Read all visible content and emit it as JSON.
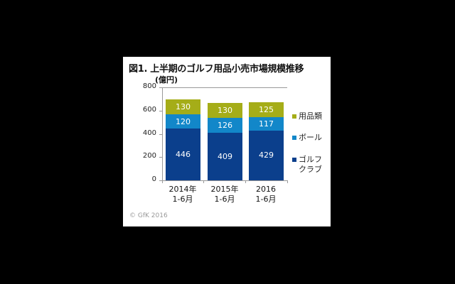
{
  "title": "図1. 上半期のゴルフ用品小売市場規模推移",
  "unit": "(億円)",
  "copyright": "© GfK 2016",
  "colors": {
    "golf_club": "#0B3F8C",
    "ball": "#1287C9",
    "goods": "#A5AD18"
  },
  "yaxis": {
    "ticks": [
      "0",
      "200",
      "400",
      "600",
      "800"
    ]
  },
  "categories": [
    {
      "line1": "2014年",
      "line2": "1-6月"
    },
    {
      "line1": "2015年",
      "line2": "1-6月"
    },
    {
      "line1": "2016",
      "line2": "1-6月"
    }
  ],
  "legend": [
    {
      "label": "用品類",
      "color": "#A5AD18"
    },
    {
      "label": "ボール",
      "color": "#1287C9"
    },
    {
      "label": "ゴルフ\nクラブ",
      "color": "#0B3F8C"
    }
  ],
  "bars": [
    {
      "golf_club": "446",
      "ball": "120",
      "goods": "130"
    },
    {
      "golf_club": "409",
      "ball": "126",
      "goods": "130"
    },
    {
      "golf_club": "429",
      "ball": "117",
      "goods": "125"
    }
  ],
  "chart_data": {
    "type": "bar",
    "stacked": true,
    "title": "図1. 上半期のゴルフ用品小売市場規模推移",
    "ylabel": "(億円)",
    "xlabel": "",
    "categories": [
      "2014年 1-6月",
      "2015年 1-6月",
      "2016 1-6月"
    ],
    "series": [
      {
        "name": "ゴルフクラブ",
        "values": [
          446,
          409,
          429
        ],
        "color": "#0B3F8C"
      },
      {
        "name": "ボール",
        "values": [
          120,
          126,
          117
        ],
        "color": "#1287C9"
      },
      {
        "name": "用品類",
        "values": [
          130,
          130,
          125
        ],
        "color": "#A5AD18"
      }
    ],
    "ylim": [
      0,
      800
    ],
    "yticks": [
      0,
      200,
      400,
      600,
      800
    ],
    "grid": false,
    "legend_position": "right",
    "annotation": "© GfK 2016"
  }
}
